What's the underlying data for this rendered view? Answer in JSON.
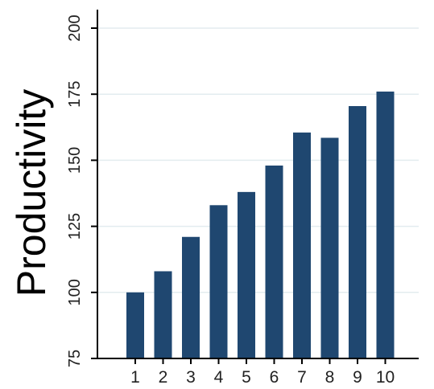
{
  "chart_data": {
    "type": "bar",
    "categories": [
      "1",
      "2",
      "3",
      "4",
      "5",
      "6",
      "7",
      "8",
      "9",
      "10"
    ],
    "values": [
      100,
      108,
      121,
      133,
      138,
      148,
      160.5,
      158.5,
      170.5,
      176
    ],
    "title": "",
    "xlabel": "",
    "ylabel": "Productivity",
    "ylim": [
      75,
      200
    ],
    "yticks": [
      "75",
      "100",
      "125",
      "150",
      "175",
      "200"
    ],
    "grid": true,
    "bar_color": "#1f4770",
    "grid_color": "#e3ecef"
  }
}
